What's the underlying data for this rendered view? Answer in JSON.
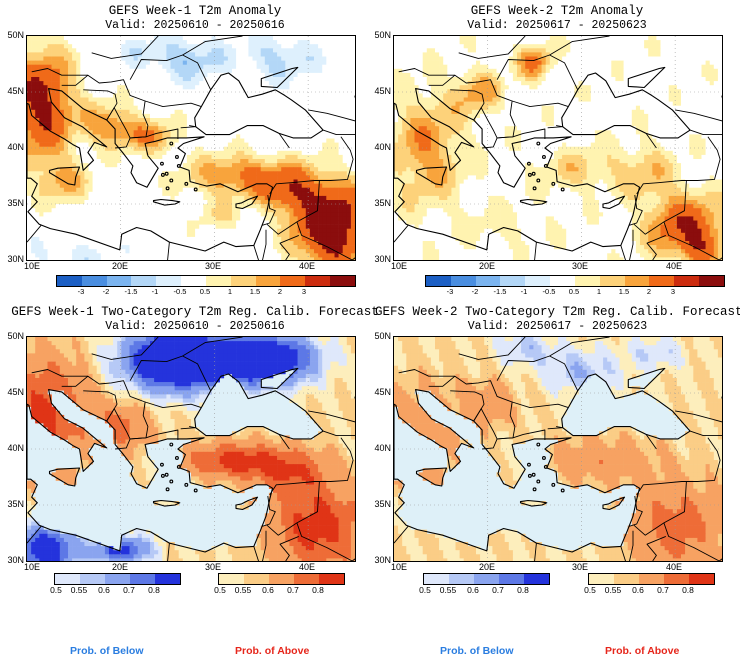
{
  "panels": [
    {
      "id": "w1-anom",
      "title": "GEFS Week-1 T2m Anomaly",
      "valid": "Valid: 20250610 - 20250616",
      "kind": "anomaly",
      "colorbar_labels": [
        "-3",
        "-2",
        "-1.5",
        "-1",
        "-0.5",
        "0.5",
        "1",
        "1.5",
        "2",
        "3"
      ]
    },
    {
      "id": "w2-anom",
      "title": "GEFS Week-2 T2m Anomaly",
      "valid": "Valid: 20250617 - 20250623",
      "kind": "anomaly",
      "colorbar_labels": [
        "-3",
        "-2",
        "-1.5",
        "-1",
        "-0.5",
        "0.5",
        "1",
        "1.5",
        "2",
        "3"
      ]
    },
    {
      "id": "w1-prob",
      "title": "GEFS Week-1 Two-Category T2m Reg. Calib. Forecast",
      "valid": "Valid: 20250610 - 20250616",
      "kind": "prob",
      "below_labels": [
        "0.5",
        "0.55",
        "0.6",
        "0.7",
        "0.8"
      ],
      "above_labels": [
        "0.5",
        "0.55",
        "0.6",
        "0.7",
        "0.8"
      ]
    },
    {
      "id": "w2-prob",
      "title": "GEFS Week-2 Two-Category T2m Reg. Calib. Forecast",
      "valid": "Valid: 20250617 - 20250623",
      "kind": "prob",
      "below_labels": [
        "0.5",
        "0.55",
        "0.6",
        "0.7",
        "0.8"
      ],
      "above_labels": [
        "0.5",
        "0.55",
        "0.6",
        "0.7",
        "0.8"
      ]
    }
  ],
  "axes": {
    "lat_labels": [
      "50N",
      "45N",
      "40N",
      "35N",
      "30N"
    ],
    "lon_labels": [
      "10E",
      "20E",
      "30E",
      "40E"
    ]
  },
  "legend": {
    "below_left": "Prob. of Below",
    "above_left": "Prob. of Above",
    "below_right": "Prob. of Below",
    "above_right": "Prob. of Above"
  },
  "colors": {
    "anomaly": [
      "#1c5fc4",
      "#4a8ee0",
      "#7bb4ef",
      "#b3d7f7",
      "#def0fd",
      "#ffffff",
      "#fff3b0",
      "#fdd27a",
      "#f8a43c",
      "#f06a19",
      "#cc2c0f",
      "#8b0d0d"
    ],
    "below": [
      "#dfe8fb",
      "#b6c9f6",
      "#8aa4ef",
      "#5d78e6",
      "#2433dc"
    ],
    "above": [
      "#fdeebc",
      "#fbcd86",
      "#f7a262",
      "#ee6c37",
      "#e03416"
    ],
    "sea": "#def0f8",
    "prob_above_text": "#e6261b",
    "prob_below_text": "#2a7de0"
  }
}
